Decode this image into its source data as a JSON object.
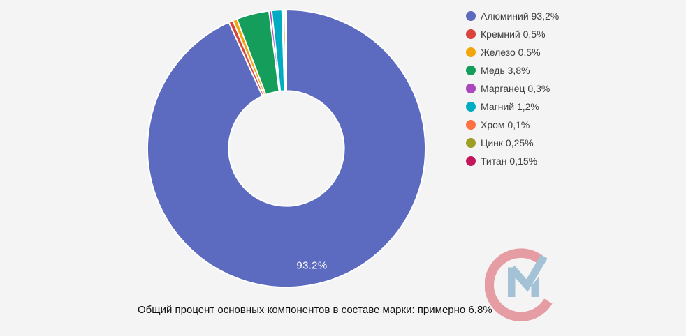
{
  "page": {
    "background_color": "#f4f4f5"
  },
  "chart_data": {
    "type": "pie",
    "subtype": "donut",
    "title": "",
    "start_angle_deg_from_top": 0,
    "direction": "clockwise",
    "inner_radius_ratio": 0.415,
    "legend_position": "right",
    "slices": [
      {
        "id": "aluminium",
        "label": "Алюминий",
        "value_pct": 93.2,
        "display": "93,2%",
        "color": "#5C6BC0"
      },
      {
        "id": "silicon",
        "label": "Кремний",
        "value_pct": 0.5,
        "display": "0,5%",
        "color": "#D9453C"
      },
      {
        "id": "iron",
        "label": "Железо",
        "value_pct": 0.5,
        "display": "0,5%",
        "color": "#F2A60E"
      },
      {
        "id": "copper",
        "label": "Медь",
        "value_pct": 3.8,
        "display": "3,8%",
        "color": "#149D5B"
      },
      {
        "id": "manganese",
        "label": "Марганец",
        "value_pct": 0.3,
        "display": "0,3%",
        "color": "#AB47BC"
      },
      {
        "id": "magnesium",
        "label": "Магний",
        "value_pct": 1.2,
        "display": "1,2%",
        "color": "#00ACC1"
      },
      {
        "id": "chromium",
        "label": "Хром",
        "value_pct": 0.1,
        "display": "0,1%",
        "color": "#FF7043"
      },
      {
        "id": "zinc",
        "label": "Цинк",
        "value_pct": 0.25,
        "display": "0,25%",
        "color": "#9E9D24"
      },
      {
        "id": "titanium",
        "label": "Титан",
        "value_pct": 0.15,
        "display": "0,15%",
        "color": "#C2185B"
      }
    ],
    "slice_label": {
      "text": "93.2%",
      "slice_index": 0
    },
    "caption": "Общий процент основных компонентов в составе марки: примерно 6,8%"
  },
  "legend": {
    "items": [
      {
        "id": "aluminium",
        "label": "Алюминий 93,2%",
        "color": "#5C6BC0"
      },
      {
        "id": "silicon",
        "label": "Кремний 0,5%",
        "color": "#D9453C"
      },
      {
        "id": "iron",
        "label": "Железо 0,5%",
        "color": "#F2A60E"
      },
      {
        "id": "copper",
        "label": "Медь 3,8%",
        "color": "#149D5B"
      },
      {
        "id": "manganese",
        "label": "Марганец 0,3%",
        "color": "#AB47BC"
      },
      {
        "id": "magnesium",
        "label": "Магний 1,2%",
        "color": "#00ACC1"
      },
      {
        "id": "chromium",
        "label": "Хром 0,1%",
        "color": "#FF7043"
      },
      {
        "id": "zinc",
        "label": "Цинк 0,25%",
        "color": "#9E9D24"
      },
      {
        "id": "titanium",
        "label": "Титан 0,15%",
        "color": "#C2185B"
      }
    ]
  },
  "logo": {
    "name": "CM watermark",
    "c_color": "#E59CA2",
    "m_color": "#A3C2D6"
  }
}
